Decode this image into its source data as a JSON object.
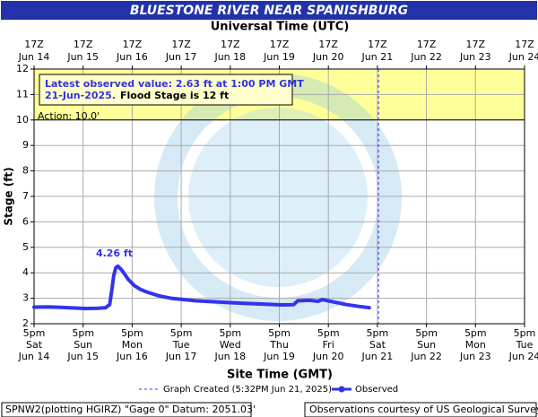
{
  "chart_data": {
    "type": "line",
    "title": "BLUESTONE RIVER NEAR SPANISHBURG",
    "top_axis_title": "Universal Time (UTC)",
    "x_axis_title": "Site Time (GMT)",
    "y_axis_title": "Stage (ft)",
    "xlim": [
      "2025-06-14T17:00",
      "2025-06-24T17:00"
    ],
    "ylim": [
      2,
      12
    ],
    "yticks": [
      2,
      3,
      4,
      5,
      6,
      7,
      8,
      9,
      10,
      11,
      12
    ],
    "grid": true,
    "top_xticks": [
      {
        "value": "2025-06-14T17:00",
        "label": "17Z",
        "date": "Jun 14"
      },
      {
        "value": "2025-06-15T17:00",
        "label": "17Z",
        "date": "Jun 15"
      },
      {
        "value": "2025-06-16T17:00",
        "label": "17Z",
        "date": "Jun 16"
      },
      {
        "value": "2025-06-17T17:00",
        "label": "17Z",
        "date": "Jun 17"
      },
      {
        "value": "2025-06-18T17:00",
        "label": "17Z",
        "date": "Jun 18"
      },
      {
        "value": "2025-06-19T17:00",
        "label": "17Z",
        "date": "Jun 19"
      },
      {
        "value": "2025-06-20T17:00",
        "label": "17Z",
        "date": "Jun 20"
      },
      {
        "value": "2025-06-21T17:00",
        "label": "17Z",
        "date": "Jun 21"
      },
      {
        "value": "2025-06-22T17:00",
        "label": "17Z",
        "date": "Jun 22"
      },
      {
        "value": "2025-06-23T17:00",
        "label": "17Z",
        "date": "Jun 23"
      },
      {
        "value": "2025-06-24T17:00",
        "label": "17Z",
        "date": "Jun 24"
      }
    ],
    "xticks": [
      {
        "value": "2025-06-14T17:00",
        "label": "5pm",
        "day": "Sat",
        "date": "Jun 14"
      },
      {
        "value": "2025-06-15T17:00",
        "label": "5pm",
        "day": "Sun",
        "date": "Jun 15"
      },
      {
        "value": "2025-06-16T17:00",
        "label": "5pm",
        "day": "Mon",
        "date": "Jun 16"
      },
      {
        "value": "2025-06-17T17:00",
        "label": "5pm",
        "day": "Tue",
        "date": "Jun 17"
      },
      {
        "value": "2025-06-18T17:00",
        "label": "5pm",
        "day": "Wed",
        "date": "Jun 18"
      },
      {
        "value": "2025-06-19T17:00",
        "label": "5pm",
        "day": "Thu",
        "date": "Jun 19"
      },
      {
        "value": "2025-06-20T17:00",
        "label": "5pm",
        "day": "Fri",
        "date": "Jun 20"
      },
      {
        "value": "2025-06-21T17:00",
        "label": "5pm",
        "day": "Sat",
        "date": "Jun 21"
      },
      {
        "value": "2025-06-22T17:00",
        "label": "5pm",
        "day": "Sun",
        "date": "Jun 22"
      },
      {
        "value": "2025-06-23T17:00",
        "label": "5pm",
        "day": "Mon",
        "date": "Jun 23"
      },
      {
        "value": "2025-06-24T17:00",
        "label": "5pm",
        "day": "Tue",
        "date": "Jun 24"
      }
    ],
    "action_stage": 10,
    "action_label": "Action: 10.0'",
    "flood_stage": 12,
    "band_color": "#ffff99",
    "latest_line1": "Latest observed value: 2.63 ft at 1:00 PM GMT",
    "latest_line2": "21-Jun-2025.",
    "flood_text": "Flood Stage is 12 ft",
    "peak_label": "4.26 ft",
    "created_time": "2025-06-21T17:32",
    "created_legend": "Graph Created (5:32PM Jun 21, 2025)",
    "x": [
      "2025-06-14T17:00",
      "2025-06-15T00:00",
      "2025-06-15T06:00",
      "2025-06-15T12:00",
      "2025-06-15T18:00",
      "2025-06-16T00:00",
      "2025-06-16T04:00",
      "2025-06-16T06:00",
      "2025-06-16T07:00",
      "2025-06-16T08:00",
      "2025-06-16T09:00",
      "2025-06-16T10:00",
      "2025-06-16T12:00",
      "2025-06-16T15:00",
      "2025-06-16T18:00",
      "2025-06-16T21:00",
      "2025-06-17T00:00",
      "2025-06-17T06:00",
      "2025-06-17T12:00",
      "2025-06-17T18:00",
      "2025-06-18T00:00",
      "2025-06-18T12:00",
      "2025-06-19T00:00",
      "2025-06-19T12:00",
      "2025-06-19T18:00",
      "2025-06-20T00:00",
      "2025-06-20T02:00",
      "2025-06-20T08:00",
      "2025-06-20T12:00",
      "2025-06-20T14:00",
      "2025-06-20T20:00",
      "2025-06-21T02:00",
      "2025-06-21T08:00",
      "2025-06-21T13:00"
    ],
    "series": [
      {
        "name": "Observed",
        "color": "#3333ee",
        "values": [
          2.65,
          2.66,
          2.64,
          2.62,
          2.6,
          2.61,
          2.63,
          2.75,
          3.3,
          3.9,
          4.2,
          4.26,
          4.1,
          3.75,
          3.5,
          3.35,
          3.25,
          3.1,
          3.0,
          2.95,
          2.9,
          2.85,
          2.8,
          2.76,
          2.74,
          2.75,
          2.9,
          2.92,
          2.88,
          2.95,
          2.85,
          2.75,
          2.68,
          2.63
        ]
      }
    ],
    "footer_left": "SPNW2(plotting HGIRZ) \"Gage 0\" Datum: 2051.03'",
    "footer_right": "Observations courtesy of US Geological Survey"
  }
}
